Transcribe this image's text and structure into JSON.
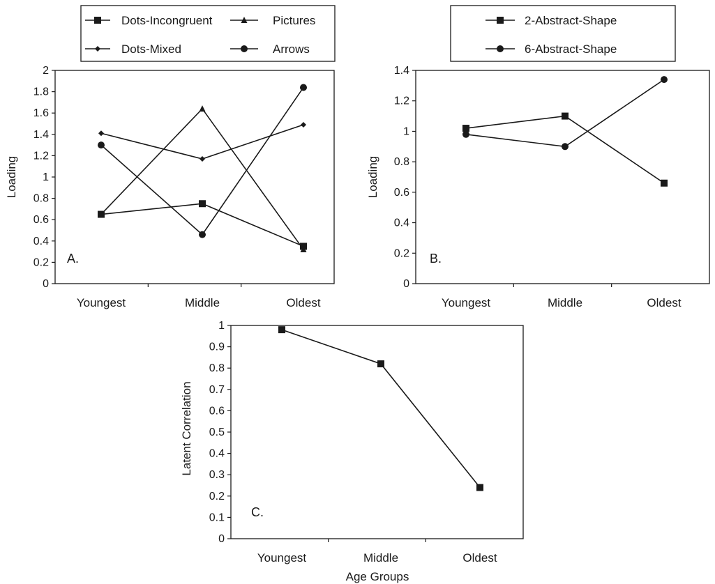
{
  "chart_data": [
    {
      "panel": "A.",
      "type": "line",
      "categories": [
        "Youngest",
        "Middle",
        "Oldest"
      ],
      "ylabel": "Loading",
      "xlabel": "",
      "ylim": [
        0,
        2
      ],
      "yticks": [
        "0",
        "0.2",
        "0.4",
        "0.6",
        "0.8",
        "1",
        "1.2",
        "1.4",
        "1.6",
        "1.8",
        "2"
      ],
      "ytick_values": [
        0,
        0.2,
        0.4,
        0.6,
        0.8,
        1,
        1.2,
        1.4,
        1.6,
        1.8,
        2
      ],
      "legend": "top, outside, boxed, two columns",
      "series": [
        {
          "name": "Dots-Incongruent",
          "marker": "square",
          "values": [
            0.65,
            0.75,
            0.35
          ]
        },
        {
          "name": "Pictures",
          "marker": "triangle",
          "values": [
            0.65,
            1.64,
            0.32
          ]
        },
        {
          "name": "Dots-Mixed",
          "marker": "diamond",
          "values": [
            1.41,
            1.17,
            1.49
          ]
        },
        {
          "name": "Arrows",
          "marker": "circle",
          "values": [
            1.3,
            0.46,
            1.84
          ]
        }
      ]
    },
    {
      "panel": "B.",
      "type": "line",
      "categories": [
        "Youngest",
        "Middle",
        "Oldest"
      ],
      "ylabel": "Loading",
      "xlabel": "",
      "ylim": [
        0,
        1.4
      ],
      "yticks": [
        "0",
        "0.2",
        "0.4",
        "0.6",
        "0.8",
        "1",
        "1.2",
        "1.4"
      ],
      "ytick_values": [
        0,
        0.2,
        0.4,
        0.6,
        0.8,
        1,
        1.2,
        1.4
      ],
      "legend": "top, outside, boxed, one column",
      "series": [
        {
          "name": "2-Abstract-Shape",
          "marker": "square",
          "values": [
            1.02,
            1.1,
            0.66
          ]
        },
        {
          "name": "6-Abstract-Shape",
          "marker": "circle",
          "values": [
            0.98,
            0.9,
            1.34
          ]
        }
      ]
    },
    {
      "panel": "C.",
      "type": "line",
      "categories": [
        "Youngest",
        "Middle",
        "Oldest"
      ],
      "ylabel": "Latent Correlation",
      "xlabel": "Age Groups",
      "ylim": [
        0,
        1
      ],
      "yticks": [
        "0",
        "0.1",
        "0.2",
        "0.3",
        "0.4",
        "0.5",
        "0.6",
        "0.7",
        "0.8",
        "0.9",
        "1"
      ],
      "ytick_values": [
        0,
        0.1,
        0.2,
        0.3,
        0.4,
        0.5,
        0.6,
        0.7,
        0.8,
        0.9,
        1
      ],
      "legend": "none",
      "series": [
        {
          "marker": "square",
          "values": [
            0.98,
            0.82,
            0.24
          ]
        }
      ]
    }
  ],
  "colors": {
    "ink": "#1a1a1a",
    "background": "#ffffff"
  }
}
